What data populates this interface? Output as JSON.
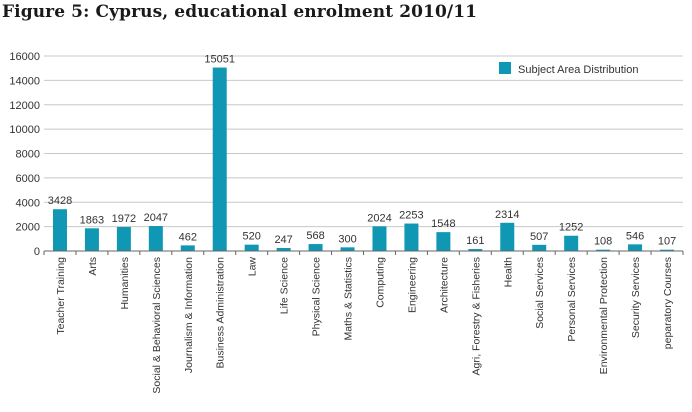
{
  "title": "Figure 5: Cyprus, educational enrolment 2010/11",
  "colors": {
    "bar": "#0f97b4",
    "grid": "#c8c8c8",
    "axis": "#666666"
  },
  "chart_data": {
    "type": "bar",
    "categories": [
      "Teacher Training",
      "Arts",
      "Humanities",
      "Social & Behavioral Sciences",
      "Journalism & Information",
      "Business Administration",
      "Law",
      "Life Science",
      "Physical Science",
      "Maths & Statistics",
      "Computing",
      "Engineering",
      "Architecture",
      "Agri, Forestry & Fisheries",
      "Health",
      "Social Services",
      "Personal Services",
      "Environmental Protection",
      "Security Services",
      "peparatory Courses"
    ],
    "series": [
      {
        "name": "Subject Area Distribution",
        "values": [
          3428,
          1863,
          1972,
          2047,
          462,
          15051,
          520,
          247,
          568,
          300,
          2024,
          2253,
          1548,
          161,
          2314,
          507,
          1252,
          108,
          546,
          107
        ]
      }
    ],
    "ylim": [
      0,
      16000
    ],
    "yticks": [
      "0",
      "2000",
      "4000",
      "6000",
      "8000",
      "10000",
      "12000",
      "14000",
      "16000"
    ],
    "grid": "horizontal",
    "legend_position": "top-right"
  }
}
